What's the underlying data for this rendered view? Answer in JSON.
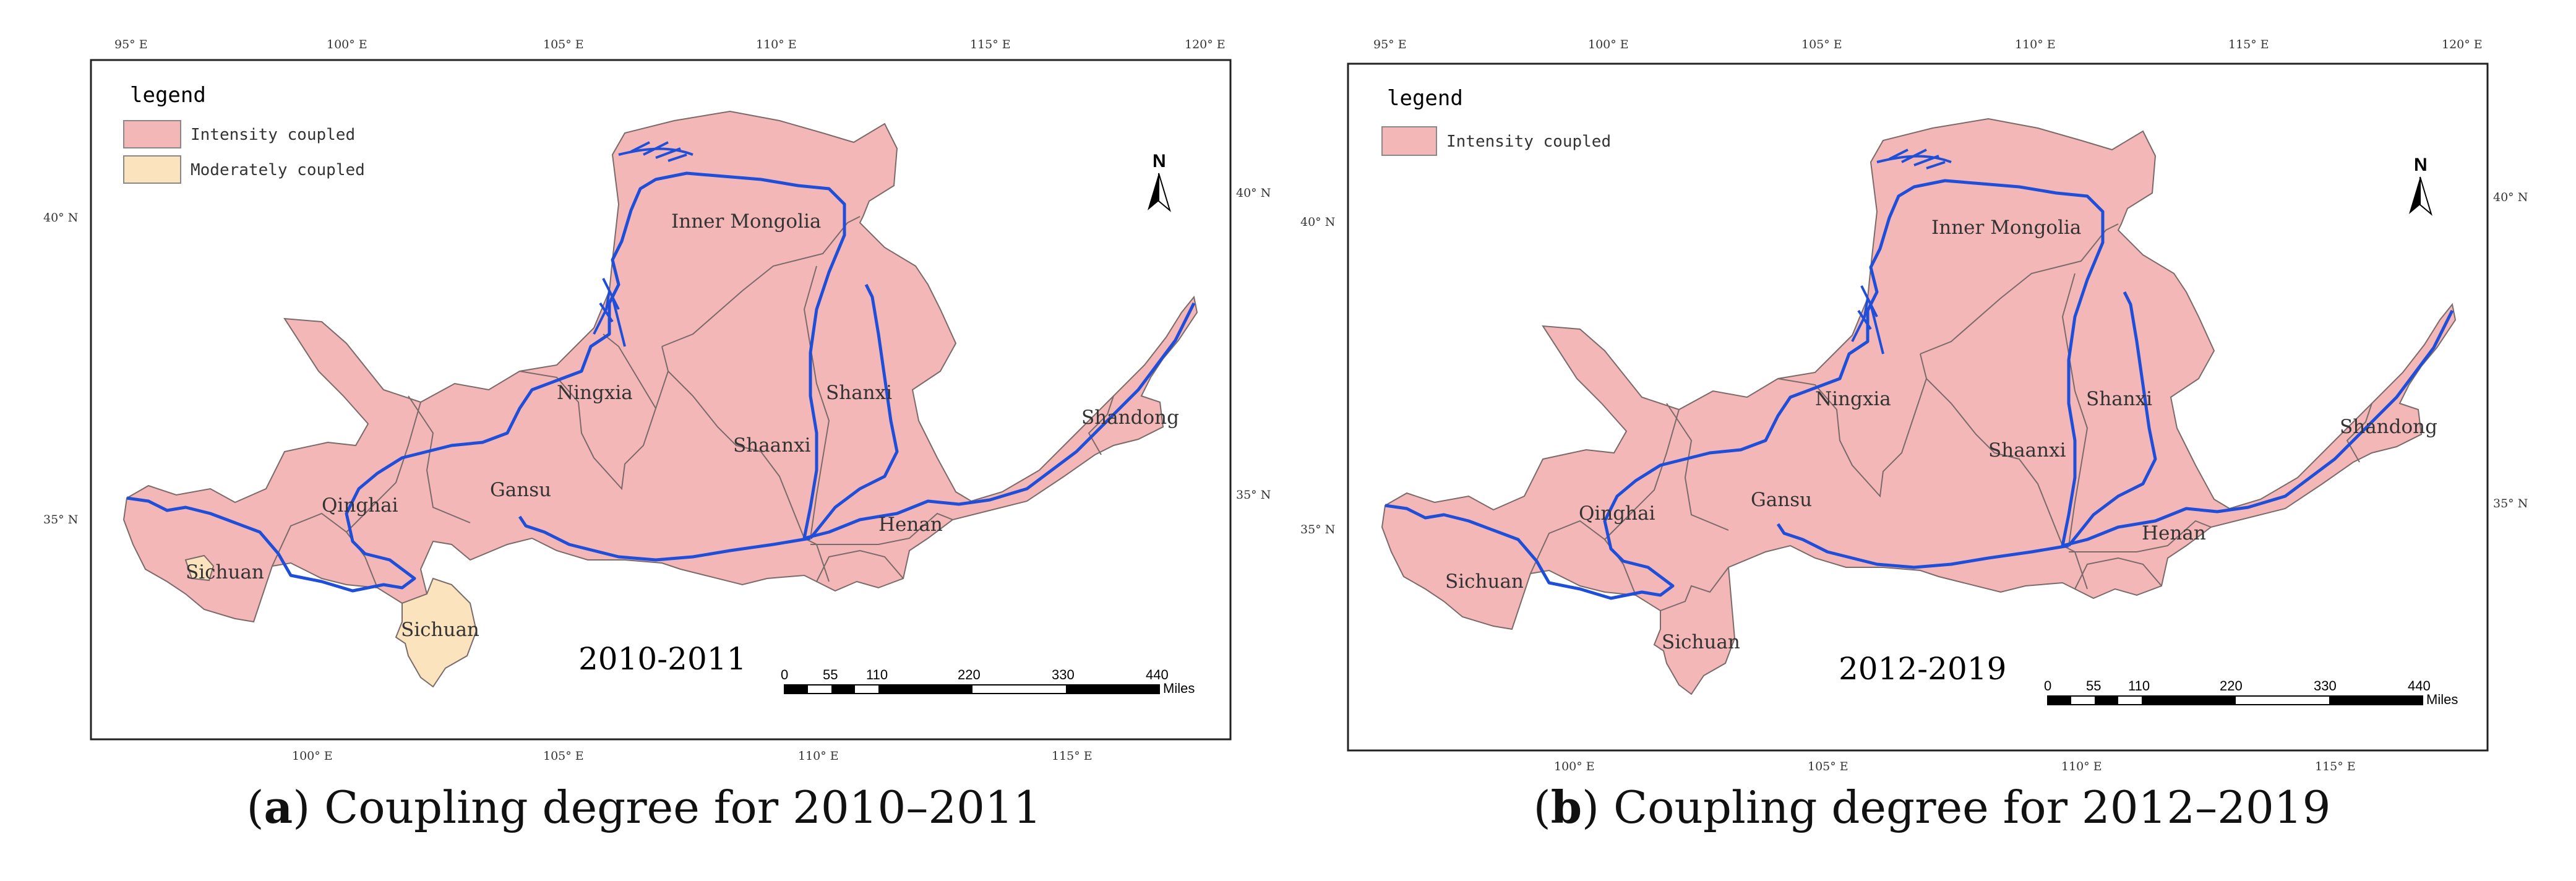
{
  "colors": {
    "intensity": "#f4b7b7",
    "moderate": "#fbe3bd",
    "river": "#1f4ed8",
    "border": "#7a6a6a"
  },
  "icons": [
    "north-arrow-icon",
    "scale-bar-icon"
  ],
  "panels": [
    {
      "legend": {
        "title": "legend",
        "items": [
          {
            "label": "Intensity coupled",
            "color": "#f4b7b7"
          },
          {
            "label": "Moderately coupled",
            "color": "#fbe3bd"
          }
        ]
      },
      "lon_top": [
        "95° E",
        "100° E",
        "105° E",
        "110° E",
        "115° E",
        "120° E"
      ],
      "lon_bottom": [
        "100° E",
        "105° E",
        "110° E",
        "115° E"
      ],
      "lat_left": [
        "40° N",
        "35° N"
      ],
      "lat_right": [
        "40° N",
        "35° N"
      ],
      "north": "N",
      "provinces": [
        "Inner Mongolia",
        "Ningxia",
        "Shaanxi",
        "Shanxi",
        "Shandong",
        "Gansu",
        "Qinghai",
        "Henan",
        "Sichuan",
        "Sichuan"
      ],
      "period": "2010-2011",
      "scale_ticks": [
        "0",
        "55",
        "110",
        "220",
        "330",
        "440"
      ],
      "scale_unit": "Miles",
      "caption_letter": "a",
      "caption_text": "Coupling degree for 2010–2011"
    },
    {
      "legend": {
        "title": "legend",
        "items": [
          {
            "label": "Intensity coupled",
            "color": "#f4b7b7"
          }
        ]
      },
      "lon_top": [
        "95° E",
        "100° E",
        "105° E",
        "110° E",
        "115° E",
        "120° E"
      ],
      "lon_bottom": [
        "100° E",
        "105° E",
        "110° E",
        "115° E"
      ],
      "lat_left": [
        "40° N",
        "35° N"
      ],
      "lat_right": [
        "40° N",
        "35° N"
      ],
      "north": "N",
      "provinces": [
        "Inner Mongolia",
        "Ningxia",
        "Shaanxi",
        "Shanxi",
        "Shandong",
        "Gansu",
        "Qinghai",
        "Henan",
        "Sichuan",
        "Sichuan"
      ],
      "period": "2012-2019",
      "scale_ticks": [
        "0",
        "55",
        "110",
        "220",
        "330",
        "440"
      ],
      "scale_unit": "Miles",
      "caption_letter": "b",
      "caption_text": "Coupling degree for 2012–2019"
    }
  ]
}
